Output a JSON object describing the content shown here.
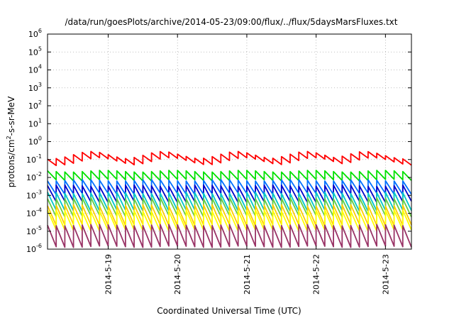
{
  "chart_data": {
    "type": "line",
    "title": "/data/run/goesPlots/archive/2014-05-23/09:00/flux/../flux/5daysMarsFluxes.txt",
    "xlabel": "Coordinated Universal Time (UTC)",
    "ylabel": {
      "pre": "protons/cm",
      "sup": "2",
      "post": "-s-sr-MeV"
    },
    "y_scale": "log",
    "ylim_exp": [
      -6,
      6
    ],
    "y_ticks": [
      {
        "base": "10",
        "exp": "-6"
      },
      {
        "base": "10",
        "exp": "-5"
      },
      {
        "base": "10",
        "exp": "-4"
      },
      {
        "base": "10",
        "exp": "-3"
      },
      {
        "base": "10",
        "exp": "-2"
      },
      {
        "base": "10",
        "exp": "-1"
      },
      {
        "base": "10",
        "exp": "0"
      },
      {
        "base": "10",
        "exp": "1"
      },
      {
        "base": "10",
        "exp": "2"
      },
      {
        "base": "10",
        "exp": "3"
      },
      {
        "base": "10",
        "exp": "4"
      },
      {
        "base": "10",
        "exp": "5"
      },
      {
        "base": "10",
        "exp": "6"
      }
    ],
    "x_range": [
      "2014-05-18 03:00",
      "2014-05-23 09:00"
    ],
    "x_ticks": [
      "2014-5-19",
      "2014-5-20",
      "2014-5-21",
      "2014-5-22",
      "2014-5-23"
    ],
    "x_tick_days": [
      1,
      2,
      3,
      4,
      5
    ],
    "x_start_day": 0.125,
    "x_end_day": 5.375,
    "grid": true,
    "legend": "none",
    "sawtooth_period_days": 0.125,
    "series": [
      {
        "color": "#ff0000",
        "log_base": -1.0,
        "amp": 0.35,
        "slow_amp": 0.45,
        "slow_peaks": [
          0.75,
          1.78,
          2.85,
          3.85,
          4.7
        ]
      },
      {
        "color": "#00e000",
        "log_base": -1.7,
        "amp": 0.5,
        "slow_amp": 0.1
      },
      {
        "color": "#0070ff",
        "log_base": -2.2,
        "amp": 0.75,
        "slow_amp": 0.08
      },
      {
        "color": "#0000c8",
        "log_base": -2.5,
        "amp": 0.9,
        "slow_amp": 0.08
      },
      {
        "color": "#00c8c8",
        "log_base": -2.9,
        "amp": 1.0,
        "slow_amp": 0.08
      },
      {
        "color": "#66cc44",
        "log_base": -3.2,
        "amp": 1.0,
        "slow_amp": 0.08
      },
      {
        "color": "#ffcc00",
        "log_base": -3.6,
        "amp": 1.1,
        "slow_amp": 0.08
      },
      {
        "color": "#ffff00",
        "log_base": -3.9,
        "amp": 1.1,
        "slow_amp": 0.08
      },
      {
        "color": "#993366",
        "log_base": -4.7,
        "amp": 1.2,
        "slow_amp": 0.08
      }
    ]
  }
}
